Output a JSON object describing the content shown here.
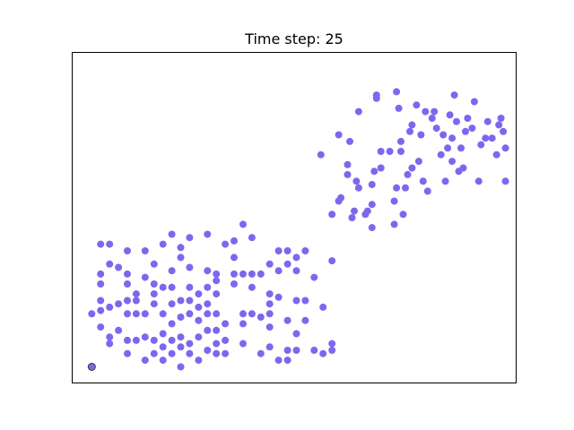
{
  "chart_data": {
    "type": "scatter",
    "title": "Time step: 25",
    "xlabel": "",
    "ylabel": "",
    "xlim": [
      0,
      1
    ],
    "ylim": [
      0,
      1
    ],
    "grid": false,
    "axis_ticks": false,
    "colors": {
      "point": "#7b68ee",
      "highlight_edge": "#333333"
    },
    "series": [
      {
        "points": [
          [
            0.045,
            0.05
          ],
          [
            0.045,
            0.21
          ],
          [
            0.065,
            0.17
          ],
          [
            0.065,
            0.22
          ],
          [
            0.085,
            0.14
          ],
          [
            0.085,
            0.12
          ],
          [
            0.085,
            0.23
          ],
          [
            0.065,
            0.25
          ],
          [
            0.065,
            0.3
          ],
          [
            0.065,
            0.33
          ],
          [
            0.065,
            0.42
          ],
          [
            0.085,
            0.42
          ],
          [
            0.085,
            0.36
          ],
          [
            0.105,
            0.24
          ],
          [
            0.105,
            0.16
          ],
          [
            0.105,
            0.35
          ],
          [
            0.125,
            0.4
          ],
          [
            0.125,
            0.33
          ],
          [
            0.125,
            0.3
          ],
          [
            0.125,
            0.25
          ],
          [
            0.125,
            0.21
          ],
          [
            0.125,
            0.13
          ],
          [
            0.125,
            0.09
          ],
          [
            0.145,
            0.13
          ],
          [
            0.145,
            0.21
          ],
          [
            0.145,
            0.25
          ],
          [
            0.145,
            0.27
          ],
          [
            0.165,
            0.4
          ],
          [
            0.165,
            0.32
          ],
          [
            0.165,
            0.21
          ],
          [
            0.165,
            0.14
          ],
          [
            0.165,
            0.07
          ],
          [
            0.185,
            0.09
          ],
          [
            0.185,
            0.13
          ],
          [
            0.185,
            0.24
          ],
          [
            0.185,
            0.27
          ],
          [
            0.185,
            0.3
          ],
          [
            0.185,
            0.36
          ],
          [
            0.205,
            0.42
          ],
          [
            0.205,
            0.29
          ],
          [
            0.205,
            0.21
          ],
          [
            0.205,
            0.15
          ],
          [
            0.205,
            0.11
          ],
          [
            0.205,
            0.07
          ],
          [
            0.225,
            0.45
          ],
          [
            0.225,
            0.34
          ],
          [
            0.225,
            0.29
          ],
          [
            0.225,
            0.24
          ],
          [
            0.225,
            0.18
          ],
          [
            0.225,
            0.13
          ],
          [
            0.225,
            0.09
          ],
          [
            0.245,
            0.41
          ],
          [
            0.245,
            0.38
          ],
          [
            0.245,
            0.25
          ],
          [
            0.245,
            0.2
          ],
          [
            0.245,
            0.14
          ],
          [
            0.245,
            0.11
          ],
          [
            0.245,
            0.05
          ],
          [
            0.265,
            0.44
          ],
          [
            0.265,
            0.35
          ],
          [
            0.265,
            0.29
          ],
          [
            0.265,
            0.25
          ],
          [
            0.265,
            0.21
          ],
          [
            0.265,
            0.12
          ],
          [
            0.265,
            0.09
          ],
          [
            0.285,
            0.27
          ],
          [
            0.285,
            0.23
          ],
          [
            0.285,
            0.19
          ],
          [
            0.285,
            0.14
          ],
          [
            0.285,
            0.07
          ],
          [
            0.305,
            0.45
          ],
          [
            0.305,
            0.34
          ],
          [
            0.305,
            0.29
          ],
          [
            0.305,
            0.24
          ],
          [
            0.305,
            0.21
          ],
          [
            0.305,
            0.16
          ],
          [
            0.305,
            0.1
          ],
          [
            0.325,
            0.33
          ],
          [
            0.325,
            0.31
          ],
          [
            0.325,
            0.27
          ],
          [
            0.325,
            0.21
          ],
          [
            0.325,
            0.16
          ],
          [
            0.325,
            0.12
          ],
          [
            0.325,
            0.09
          ],
          [
            0.345,
            0.42
          ],
          [
            0.345,
            0.18
          ],
          [
            0.345,
            0.13
          ],
          [
            0.345,
            0.09
          ],
          [
            0.365,
            0.43
          ],
          [
            0.365,
            0.38
          ],
          [
            0.365,
            0.33
          ],
          [
            0.365,
            0.3
          ],
          [
            0.385,
            0.48
          ],
          [
            0.385,
            0.33
          ],
          [
            0.385,
            0.21
          ],
          [
            0.385,
            0.18
          ],
          [
            0.385,
            0.12
          ],
          [
            0.405,
            0.44
          ],
          [
            0.405,
            0.33
          ],
          [
            0.405,
            0.29
          ],
          [
            0.405,
            0.21
          ],
          [
            0.425,
            0.33
          ],
          [
            0.425,
            0.2
          ],
          [
            0.425,
            0.09
          ],
          [
            0.445,
            0.36
          ],
          [
            0.445,
            0.27
          ],
          [
            0.445,
            0.24
          ],
          [
            0.445,
            0.21
          ],
          [
            0.445,
            0.17
          ],
          [
            0.445,
            0.11
          ],
          [
            0.465,
            0.4
          ],
          [
            0.465,
            0.34
          ],
          [
            0.465,
            0.26
          ],
          [
            0.465,
            0.07
          ],
          [
            0.485,
            0.4
          ],
          [
            0.485,
            0.36
          ],
          [
            0.485,
            0.19
          ],
          [
            0.485,
            0.1
          ],
          [
            0.485,
            0.07
          ],
          [
            0.505,
            0.38
          ],
          [
            0.505,
            0.34
          ],
          [
            0.505,
            0.25
          ],
          [
            0.505,
            0.15
          ],
          [
            0.505,
            0.1
          ],
          [
            0.525,
            0.4
          ],
          [
            0.525,
            0.25
          ],
          [
            0.525,
            0.19
          ],
          [
            0.545,
            0.32
          ],
          [
            0.545,
            0.1
          ],
          [
            0.565,
            0.23
          ],
          [
            0.565,
            0.09
          ],
          [
            0.585,
            0.37
          ],
          [
            0.585,
            0.12
          ],
          [
            0.585,
            0.1
          ],
          [
            0.56,
            0.69
          ],
          [
            0.585,
            0.51
          ],
          [
            0.6,
            0.55
          ],
          [
            0.6,
            0.75
          ],
          [
            0.605,
            0.56
          ],
          [
            0.62,
            0.63
          ],
          [
            0.62,
            0.66
          ],
          [
            0.625,
            0.73
          ],
          [
            0.63,
            0.5
          ],
          [
            0.635,
            0.52
          ],
          [
            0.64,
            0.61
          ],
          [
            0.645,
            0.82
          ],
          [
            0.645,
            0.59
          ],
          [
            0.66,
            0.51
          ],
          [
            0.665,
            0.52
          ],
          [
            0.675,
            0.6
          ],
          [
            0.675,
            0.54
          ],
          [
            0.675,
            0.47
          ],
          [
            0.68,
            0.64
          ],
          [
            0.685,
            0.87
          ],
          [
            0.685,
            0.86
          ],
          [
            0.695,
            0.7
          ],
          [
            0.695,
            0.65
          ],
          [
            0.715,
            0.7
          ],
          [
            0.725,
            0.48
          ],
          [
            0.725,
            0.55
          ],
          [
            0.73,
            0.59
          ],
          [
            0.73,
            0.88
          ],
          [
            0.735,
            0.83
          ],
          [
            0.74,
            0.7
          ],
          [
            0.74,
            0.73
          ],
          [
            0.745,
            0.51
          ],
          [
            0.75,
            0.59
          ],
          [
            0.755,
            0.63
          ],
          [
            0.76,
            0.76
          ],
          [
            0.765,
            0.65
          ],
          [
            0.765,
            0.78
          ],
          [
            0.775,
            0.84
          ],
          [
            0.78,
            0.67
          ],
          [
            0.785,
            0.75
          ],
          [
            0.79,
            0.61
          ],
          [
            0.795,
            0.82
          ],
          [
            0.8,
            0.58
          ],
          [
            0.81,
            0.8
          ],
          [
            0.815,
            0.82
          ],
          [
            0.82,
            0.77
          ],
          [
            0.83,
            0.69
          ],
          [
            0.835,
            0.75
          ],
          [
            0.84,
            0.61
          ],
          [
            0.845,
            0.71
          ],
          [
            0.85,
            0.81
          ],
          [
            0.855,
            0.74
          ],
          [
            0.855,
            0.67
          ],
          [
            0.86,
            0.87
          ],
          [
            0.865,
            0.79
          ],
          [
            0.87,
            0.64
          ],
          [
            0.875,
            0.71
          ],
          [
            0.88,
            0.65
          ],
          [
            0.885,
            0.76
          ],
          [
            0.89,
            0.8
          ],
          [
            0.9,
            0.77
          ],
          [
            0.905,
            0.85
          ],
          [
            0.915,
            0.61
          ],
          [
            0.92,
            0.72
          ],
          [
            0.93,
            0.74
          ],
          [
            0.935,
            0.79
          ],
          [
            0.945,
            0.74
          ],
          [
            0.955,
            0.69
          ],
          [
            0.96,
            0.78
          ],
          [
            0.965,
            0.8
          ],
          [
            0.97,
            0.76
          ],
          [
            0.975,
            0.71
          ],
          [
            0.975,
            0.61
          ]
        ],
        "highlight": [
          0.045,
          0.05
        ]
      }
    ]
  }
}
